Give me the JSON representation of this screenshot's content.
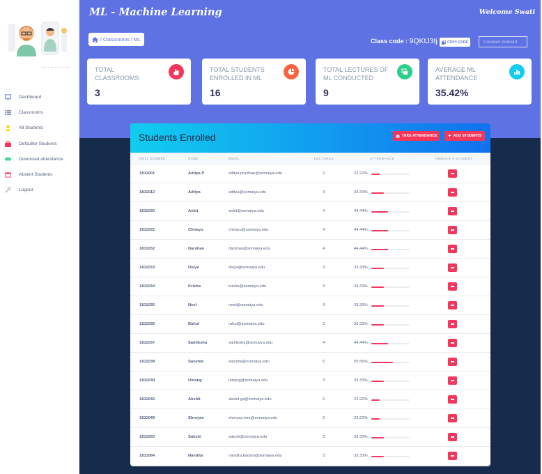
{
  "app": {
    "brand": "ML - Machine Learning",
    "welcome": "Welcome Swati"
  },
  "sidebar": {
    "items": [
      {
        "label": "Dashboard",
        "icon": "monitor-icon",
        "color": "#5e72e4"
      },
      {
        "label": "Classrooms",
        "icon": "list-icon",
        "color": "#8898aa"
      },
      {
        "label": "All Students",
        "icon": "user-icon",
        "color": "#ffd600"
      },
      {
        "label": "Defaulter Students",
        "icon": "briefcase-icon",
        "color": "#f5365c"
      },
      {
        "label": "Download attendance",
        "icon": "cloud-download-icon",
        "color": "#2dce89"
      },
      {
        "label": "Absent Students",
        "icon": "calendar-icon",
        "color": "#f5365c"
      },
      {
        "label": "Logout",
        "icon": "key-icon",
        "color": "#8898aa"
      }
    ]
  },
  "breadcrumb": {
    "path": "/ Classrooms / ML"
  },
  "classcode": {
    "label": "Class code :",
    "code": "9QKtJ3tj",
    "copy_label": "COPY CODE",
    "connect_placeholder": "Connect Android"
  },
  "stats": [
    {
      "title": "TOTAL CLASSROOMS",
      "value": "3",
      "icon": "hand-pointer-icon",
      "color": "#f5365c"
    },
    {
      "title": "TOTAL STUDENTS ENROLLED IN ML",
      "value": "16",
      "icon": "pie-chart-icon",
      "color": "#fb6340"
    },
    {
      "title": "TOTAL LECTURES OF ML CONDUCTED",
      "value": "9",
      "icon": "cards-icon",
      "color": "#2dce89"
    },
    {
      "title": "AVERAGE ML ATTENDANCE",
      "value": "35.42%",
      "icon": "bar-chart-icon",
      "color": "#11cdef"
    }
  ],
  "table": {
    "title": "Students Enrolled",
    "take_attendance_label": "TAKE ATTENDANCE",
    "add_students_label": "ADD STUDENTS",
    "columns": [
      "ROLL NUMBER",
      "NAME",
      "EMAIL",
      "LECTURES",
      "ATTENDANCE",
      "REMOVE A STUDENT"
    ],
    "rows": [
      {
        "roll": "1811001",
        "name": "Aditya P",
        "email": "aditya.pradhan@somaiya.edu",
        "lectures": "2",
        "attendance": "22.22%",
        "pct": 22.22
      },
      {
        "roll": "1811012",
        "name": "Aditya",
        "email": "aditya@somaiya.edu",
        "lectures": "3",
        "attendance": "33.33%",
        "pct": 33.33
      },
      {
        "roll": "1811030",
        "name": "Ankit",
        "email": "ankit@somaiya.edu",
        "lectures": "4",
        "attendance": "44.44%",
        "pct": 44.44
      },
      {
        "roll": "1811031",
        "name": "Chirayu",
        "email": "chirayu@somaiya.edu",
        "lectures": "4",
        "attendance": "44.44%",
        "pct": 44.44
      },
      {
        "roll": "1811032",
        "name": "Darshan",
        "email": "darshan@somaiya.edu",
        "lectures": "4",
        "attendance": "44.44%",
        "pct": 44.44
      },
      {
        "roll": "1811033",
        "name": "Divya",
        "email": "divya@somaiya.edu",
        "lectures": "3",
        "attendance": "33.33%",
        "pct": 33.33
      },
      {
        "roll": "1811034",
        "name": "Krisha",
        "email": "krisha@somaiya.edu",
        "lectures": "3",
        "attendance": "33.33%",
        "pct": 33.33
      },
      {
        "roll": "1811035",
        "name": "Neel",
        "email": "neel@somaiya.edu",
        "lectures": "3",
        "attendance": "33.33%",
        "pct": 33.33
      },
      {
        "roll": "1811036",
        "name": "Rahul",
        "email": "rahul@somaiya.edu",
        "lectures": "3",
        "attendance": "33.33%",
        "pct": 33.33
      },
      {
        "roll": "1811037",
        "name": "Samiksha",
        "email": "samiksha@somaiya.edu",
        "lectures": "4",
        "attendance": "44.44%",
        "pct": 44.44
      },
      {
        "roll": "1811038",
        "name": "Sanvida",
        "email": "sanvida@somaiya.edu",
        "lectures": "5",
        "attendance": "55.56%",
        "pct": 55.56
      },
      {
        "roll": "1811039",
        "name": "Umang",
        "email": "umang@somaiya.edu",
        "lectures": "3",
        "attendance": "33.33%",
        "pct": 33.33
      },
      {
        "roll": "1811042",
        "name": "Akshit",
        "email": "akshit.gs@somaiya.edu",
        "lectures": "2",
        "attendance": "22.22%",
        "pct": 22.22
      },
      {
        "roll": "1811049",
        "name": "Shreyas",
        "email": "shreyas.mm@somaiya.edu",
        "lectures": "2",
        "attendance": "22.22%",
        "pct": 22.22
      },
      {
        "roll": "1811053",
        "name": "Sakshi",
        "email": "sakshi@somaiya.edu",
        "lectures": "3",
        "attendance": "33.33%",
        "pct": 33.33
      },
      {
        "roll": "1811084",
        "name": "Nandita",
        "email": "nandita.kadam@somaiya.edu",
        "lectures": "3",
        "attendance": "33.33%",
        "pct": 33.33
      }
    ]
  }
}
